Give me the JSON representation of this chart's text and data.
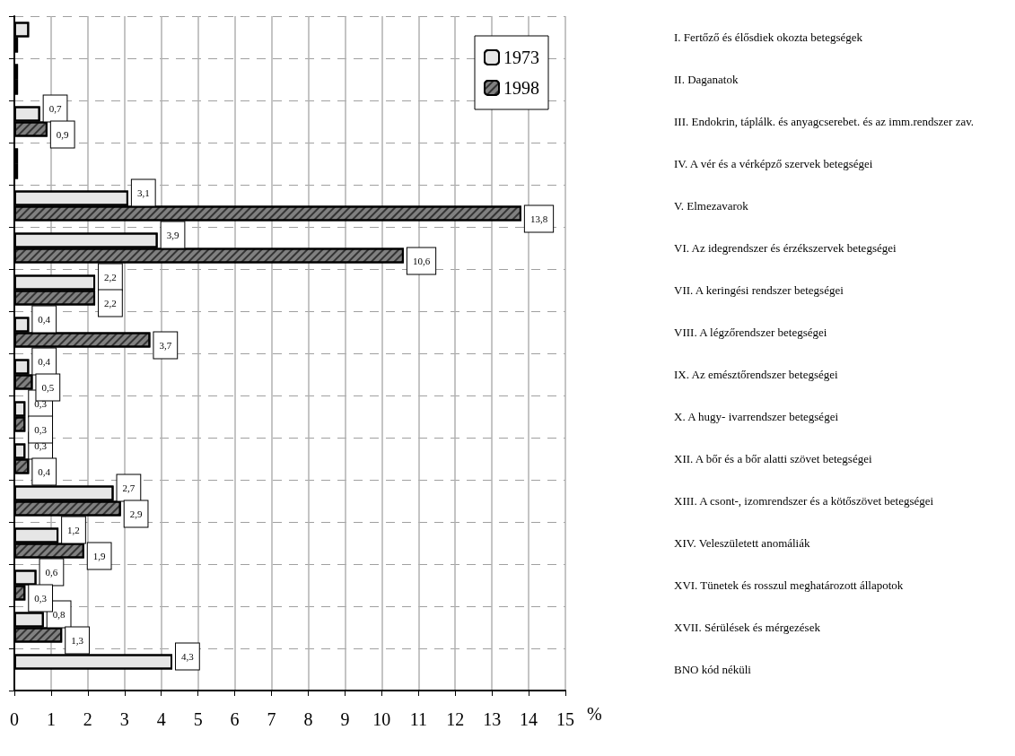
{
  "chart_data": {
    "type": "bar",
    "orientation": "horizontal",
    "xlabel": "%",
    "categories": [
      "I. Fertőző és élősdiek okozta betegségek",
      "II. Daganatok",
      "III. Endokrin, táplálk. és anyagcserebet. és az imm.rendszer zav.",
      "IV. A vér és a vérképző szervek betegségei",
      "V. Elmezavarok",
      "VI. Az idegrendszer és érzékszervek betegségei",
      "VII. A keringési rendszer betegségei",
      "VIII. A légzőrendszer betegségei",
      "IX. Az emésztőrendszer betegségei",
      "X. A hugy- ivarrendszer betegségei",
      "XII. A bőr és a bőr alatti szövet betegségei",
      "XIII. A csont-, izomrendszer és a kötőszövet betegségei",
      "XIV. Veleszületett anomáliák",
      "XVI. Tünetek és rosszul meghatározott állapotok",
      "XVII. Sérülések és mérgezések",
      "BNO kód néküli"
    ],
    "series": [
      {
        "name": "1973",
        "color": "#e6e6e6",
        "values": [
          0.4,
          0.1,
          0.7,
          0.1,
          3.1,
          3.9,
          2.2,
          0.4,
          0.4,
          0.3,
          0.3,
          2.7,
          1.2,
          0.6,
          0.8,
          4.3
        ],
        "value_labels": [
          null,
          null,
          "0,7",
          null,
          "3,1",
          "3,9",
          "2,2",
          "0,4",
          "0,4",
          "0,3",
          "0,3",
          "2,7",
          "1,2",
          "0,6",
          "0,8",
          "4,3"
        ]
      },
      {
        "name": "1998",
        "color": "#808080",
        "values": [
          0.1,
          0.1,
          0.9,
          0.1,
          13.8,
          10.6,
          2.2,
          3.7,
          0.5,
          0.3,
          0.4,
          2.9,
          1.9,
          0.3,
          1.3,
          null
        ],
        "value_labels": [
          null,
          null,
          "0,9",
          null,
          "13,8",
          "10,6",
          "2,2",
          "3,7",
          "0,5",
          "0,3",
          "0,4",
          "2,9",
          "1,9",
          "0,3",
          "1,3",
          null
        ]
      }
    ],
    "xlim": [
      0,
      15
    ],
    "xticks": [
      0,
      1,
      2,
      3,
      4,
      5,
      6,
      7,
      8,
      9,
      10,
      11,
      12,
      13,
      14,
      15
    ],
    "grid": true,
    "legend": "top right"
  }
}
